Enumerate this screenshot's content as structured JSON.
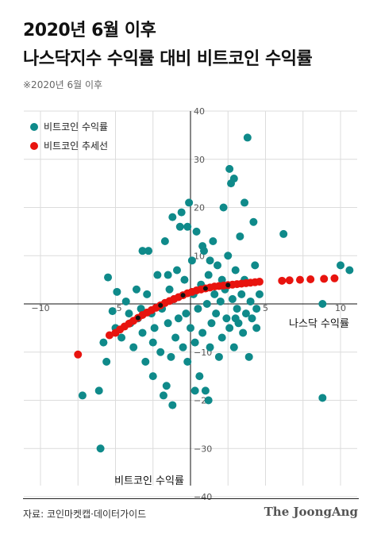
{
  "header": {
    "title_line1": "2020년 6월 이후",
    "title_line2": "나스닥지수 수익률 대비 비트코인 수익률",
    "note": "※2020년 6월 이후"
  },
  "footer": {
    "source": "자료: 코인마켓캡·데이터가이드",
    "brand": "The JoongAng"
  },
  "colors": {
    "teal": "#0f8a8a",
    "red": "#e8140f",
    "black": "#111111",
    "grid": "#dcdcdc"
  },
  "chart_data": {
    "type": "scatter",
    "xlabel": "나스닥 수익률",
    "ylabel": "비트코인 수익률",
    "xlim": [
      -10,
      10
    ],
    "ylim": [
      -40,
      40
    ],
    "x_ticks": [
      -10,
      -5,
      5,
      10
    ],
    "y_ticks": [
      40,
      30,
      20,
      10,
      -10,
      -20,
      -30,
      -40
    ],
    "x_tick_labels": [
      "−10",
      "−5",
      "5",
      "10"
    ],
    "y_tick_labels": [
      "40",
      "30",
      "20",
      "10",
      "−10",
      "−20",
      "−30",
      "−40"
    ],
    "grid": true,
    "legend_position": "top-left",
    "series": [
      {
        "name": "비트코인 수익률",
        "color": "#0f8a8a",
        "points": [
          [
            -7.2,
            -19
          ],
          [
            -6.0,
            -30
          ],
          [
            -5.5,
            5.5
          ],
          [
            -5.2,
            -1.5
          ],
          [
            -5.0,
            -5
          ],
          [
            -4.6,
            -7
          ],
          [
            -4.3,
            0.5
          ],
          [
            -4.0,
            -4
          ],
          [
            -6.1,
            -18
          ],
          [
            -5.8,
            -8
          ],
          [
            -5.6,
            -12
          ],
          [
            -3.8,
            -9
          ],
          [
            -3.6,
            3
          ],
          [
            -3.5,
            -3
          ],
          [
            -3.2,
            -6
          ],
          [
            -3.0,
            -12
          ],
          [
            -2.9,
            2
          ],
          [
            -2.8,
            11
          ],
          [
            -2.6,
            -2
          ],
          [
            -2.5,
            -15
          ],
          [
            -2.4,
            -5
          ],
          [
            -2.2,
            6
          ],
          [
            -2.0,
            -10
          ],
          [
            -1.9,
            -1
          ],
          [
            -1.8,
            -19
          ],
          [
            -1.7,
            13
          ],
          [
            -1.6,
            -17
          ],
          [
            -1.5,
            -4
          ],
          [
            -1.4,
            3
          ],
          [
            -1.3,
            -11
          ],
          [
            -1.2,
            -21
          ],
          [
            -1.1,
            1
          ],
          [
            -1.0,
            -7
          ],
          [
            -0.9,
            7
          ],
          [
            -0.8,
            -3
          ],
          [
            -0.7,
            16
          ],
          [
            -0.6,
            19
          ],
          [
            -0.5,
            -9
          ],
          [
            -0.4,
            5
          ],
          [
            -0.3,
            -2
          ],
          [
            -0.2,
            -12
          ],
          [
            -0.1,
            21
          ],
          [
            0.0,
            -5
          ],
          [
            0.1,
            9
          ],
          [
            0.2,
            2
          ],
          [
            0.3,
            -8
          ],
          [
            0.4,
            15
          ],
          [
            0.5,
            -1
          ],
          [
            0.6,
            -15
          ],
          [
            0.7,
            4
          ],
          [
            0.8,
            -6
          ],
          [
            0.9,
            11
          ],
          [
            1.0,
            -18
          ],
          [
            1.1,
            0
          ],
          [
            1.2,
            6
          ],
          [
            1.3,
            -9
          ],
          [
            1.4,
            -4
          ],
          [
            1.5,
            13
          ],
          [
            1.6,
            2
          ],
          [
            1.7,
            -2
          ],
          [
            1.8,
            8
          ],
          [
            1.9,
            -11
          ],
          [
            2.0,
            0.5
          ],
          [
            2.1,
            -7
          ],
          [
            2.2,
            20
          ],
          [
            2.3,
            3
          ],
          [
            2.4,
            -3
          ],
          [
            2.5,
            10
          ],
          [
            2.6,
            -5
          ],
          [
            2.7,
            25
          ],
          [
            2.8,
            1
          ],
          [
            2.9,
            -9
          ],
          [
            3.0,
            7
          ],
          [
            3.1,
            -1
          ],
          [
            3.2,
            -4
          ],
          [
            3.3,
            14
          ],
          [
            3.4,
            2
          ],
          [
            3.5,
            -6
          ],
          [
            3.6,
            5
          ],
          [
            3.7,
            -2
          ],
          [
            3.8,
            34.5
          ],
          [
            3.9,
            -11
          ],
          [
            4.0,
            0.5
          ],
          [
            4.1,
            -3
          ],
          [
            4.2,
            17
          ],
          [
            4.3,
            8
          ],
          [
            4.4,
            -1
          ],
          [
            4.6,
            2
          ],
          [
            1.2,
            -20
          ],
          [
            0.3,
            -18
          ],
          [
            -0.2,
            16
          ],
          [
            -1.2,
            18
          ],
          [
            -3.2,
            11
          ],
          [
            2.6,
            28
          ],
          [
            2.9,
            26
          ],
          [
            3.6,
            21
          ],
          [
            6.2,
            14.5
          ],
          [
            8.8,
            0
          ],
          [
            10.6,
            7
          ],
          [
            10.0,
            8
          ],
          [
            8.8,
            -19.5
          ],
          [
            -2.5,
            -8
          ],
          [
            -3.3,
            -1
          ],
          [
            -4.1,
            -2
          ],
          [
            -4.9,
            2.5
          ],
          [
            -1.5,
            6
          ],
          [
            0.8,
            12
          ],
          [
            1.3,
            9
          ],
          [
            2.1,
            5
          ],
          [
            3.0,
            -3
          ],
          [
            4.4,
            -5
          ]
        ]
      },
      {
        "name": "비트코인 추세선",
        "color": "#e8140f",
        "points": [
          [
            -7.5,
            -10.5
          ],
          [
            -5.4,
            -6.5
          ],
          [
            -5.0,
            -6
          ],
          [
            -4.7,
            -5.3
          ],
          [
            -4.4,
            -4.7
          ],
          [
            -4.1,
            -4.1
          ],
          [
            -3.8,
            -3.5
          ],
          [
            -3.5,
            -2.9
          ],
          [
            -3.2,
            -2.3
          ],
          [
            -2.9,
            -1.8
          ],
          [
            -2.6,
            -1.3
          ],
          [
            -2.3,
            -0.8
          ],
          [
            -2.0,
            -0.3
          ],
          [
            -1.7,
            0.2
          ],
          [
            -1.4,
            0.6
          ],
          [
            -1.1,
            1.0
          ],
          [
            -0.8,
            1.4
          ],
          [
            -0.5,
            1.8
          ],
          [
            -0.2,
            2.2
          ],
          [
            0.1,
            2.5
          ],
          [
            0.4,
            2.8
          ],
          [
            0.7,
            3.0
          ],
          [
            1.0,
            3.2
          ],
          [
            1.3,
            3.4
          ],
          [
            1.6,
            3.6
          ],
          [
            1.9,
            3.7
          ],
          [
            2.2,
            3.8
          ],
          [
            2.5,
            3.9
          ],
          [
            2.8,
            4.0
          ],
          [
            3.1,
            4.1
          ],
          [
            3.4,
            4.2
          ],
          [
            3.7,
            4.3
          ],
          [
            4.0,
            4.4
          ],
          [
            4.3,
            4.5
          ],
          [
            4.6,
            4.6
          ],
          [
            6.1,
            4.8
          ],
          [
            6.6,
            4.9
          ],
          [
            7.3,
            5.0
          ],
          [
            8.0,
            5.1
          ],
          [
            8.9,
            5.2
          ],
          [
            9.6,
            5.3
          ]
        ]
      }
    ]
  }
}
